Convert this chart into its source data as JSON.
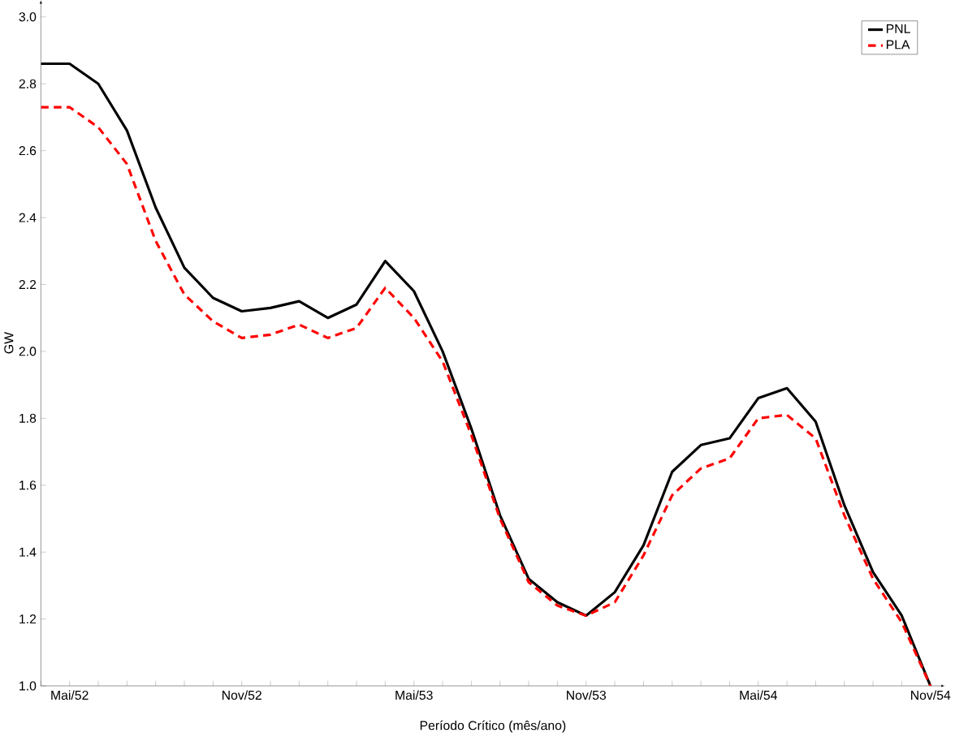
{
  "chart_data": {
    "type": "line",
    "xlabel": "Período Crítico (mês/ano)",
    "ylabel": "GW",
    "categories": [
      null,
      "Mai/52",
      null,
      null,
      null,
      null,
      null,
      "Nov/52",
      null,
      null,
      null,
      null,
      null,
      "Mai/53",
      null,
      null,
      null,
      null,
      null,
      "Nov/53",
      null,
      null,
      null,
      null,
      null,
      "Mai/54",
      null,
      null,
      null,
      null,
      null,
      "Nov/54"
    ],
    "series": [
      {
        "name": "PNL",
        "color": "#000000",
        "line_style": "solid",
        "values": [
          2.86,
          2.86,
          2.8,
          2.66,
          2.43,
          2.25,
          2.16,
          2.12,
          2.13,
          2.15,
          2.1,
          2.14,
          2.27,
          2.18,
          2.0,
          1.77,
          1.51,
          1.32,
          1.25,
          1.21,
          1.28,
          1.42,
          1.64,
          1.72,
          1.74,
          1.86,
          1.89,
          1.79,
          1.54,
          1.34,
          1.21,
          1.0
        ]
      },
      {
        "name": "PLA",
        "color": "#ff0000",
        "line_style": "dashed",
        "values": [
          2.73,
          2.73,
          2.67,
          2.56,
          2.33,
          2.17,
          2.09,
          2.04,
          2.05,
          2.08,
          2.04,
          2.07,
          2.19,
          2.1,
          1.97,
          1.75,
          1.5,
          1.31,
          1.24,
          1.21,
          1.25,
          1.39,
          1.57,
          1.65,
          1.68,
          1.8,
          1.81,
          1.74,
          1.51,
          1.32,
          1.19,
          1.0
        ]
      }
    ],
    "ylim": [
      1.0,
      3.05
    ],
    "yticks": [
      {
        "value": 1.0,
        "label": "1.0"
      },
      {
        "value": 1.2,
        "label": "1.2"
      },
      {
        "value": 1.4,
        "label": "1.4"
      },
      {
        "value": 1.6,
        "label": "1.6"
      },
      {
        "value": 1.8,
        "label": "1.8"
      },
      {
        "value": 2.0,
        "label": "2.0"
      },
      {
        "value": 2.2,
        "label": "2.2"
      },
      {
        "value": 2.4,
        "label": "2.4"
      },
      {
        "value": 2.6,
        "label": "2.6"
      },
      {
        "value": 2.8,
        "label": "2.8"
      },
      {
        "value": 3.0,
        "label": "3.0"
      }
    ],
    "legend": "top right"
  }
}
